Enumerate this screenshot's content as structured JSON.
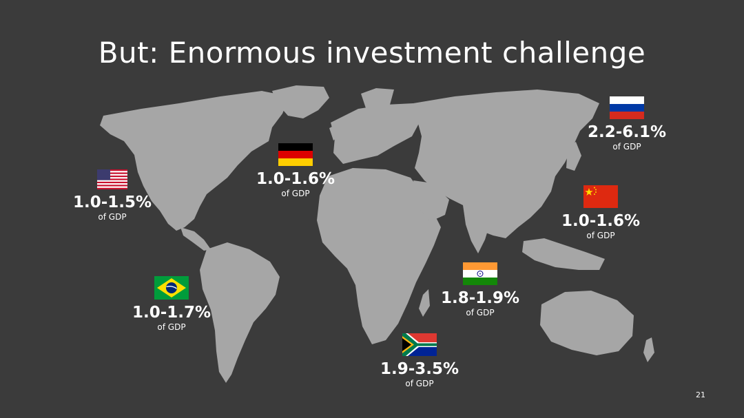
{
  "slide": {
    "title": "But: Enormous investment challenge",
    "page_number": "21",
    "colors": {
      "background": "#3b3b3b",
      "land": "#a6a6a6",
      "text": "#ffffff"
    }
  },
  "stats": {
    "usa": {
      "country": "United States",
      "flag_icon": "usa-flag-icon",
      "value": "1.0-1.5%",
      "unit": "of GDP"
    },
    "germany": {
      "country": "Germany",
      "flag_icon": "germany-flag-icon",
      "value": "1.0-1.6%",
      "unit": "of GDP"
    },
    "russia": {
      "country": "Russia",
      "flag_icon": "russia-flag-icon",
      "value": "2.2-6.1%",
      "unit": "of GDP"
    },
    "china": {
      "country": "China",
      "flag_icon": "china-flag-icon",
      "value": "1.0-1.6%",
      "unit": "of GDP"
    },
    "brazil": {
      "country": "Brazil",
      "flag_icon": "brazil-flag-icon",
      "value": "1.0-1.7%",
      "unit": "of GDP"
    },
    "india": {
      "country": "India",
      "flag_icon": "india-flag-icon",
      "value": "1.8-1.9%",
      "unit": "of GDP"
    },
    "south_africa": {
      "country": "South Africa",
      "flag_icon": "south-africa-flag-icon",
      "value": "1.9-3.5%",
      "unit": "of GDP"
    }
  }
}
